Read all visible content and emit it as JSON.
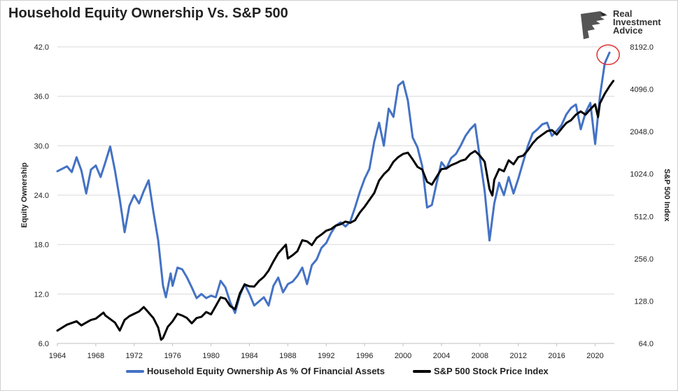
{
  "chart_data": {
    "type": "line",
    "title": "Household Equity Ownership Vs. S&P 500",
    "xlabel": "",
    "ylabel": "Equity Ownership",
    "y2label": "S&P 500 Index",
    "x_ticks": [
      "1964",
      "1968",
      "1972",
      "1976",
      "1980",
      "1984",
      "1988",
      "1992",
      "1996",
      "2000",
      "2004",
      "2008",
      "2012",
      "2016",
      "2020"
    ],
    "x_range": [
      1964,
      2022
    ],
    "y_ticks": [
      "6.0",
      "12.0",
      "18.0",
      "24.0",
      "30.0",
      "36.0",
      "42.0"
    ],
    "ylim": [
      6,
      42
    ],
    "y2_ticks": [
      "64.0",
      "128.0",
      "256.0",
      "512.0",
      "1024.0",
      "2048.0",
      "4096.0",
      "8192.0"
    ],
    "y2lim_log2": [
      6,
      13
    ],
    "grid": true,
    "legend_position": "bottom",
    "annotation": "red circle around latest equity ownership high",
    "series": [
      {
        "name": "Household Equity Ownership As % Of Financial Assets",
        "color": "#4472C4",
        "axis": "left",
        "points": [
          [
            1964,
            26.9
          ],
          [
            1965,
            27.5
          ],
          [
            1965.5,
            26.8
          ],
          [
            1966,
            28.6
          ],
          [
            1966.5,
            27.0
          ],
          [
            1967,
            24.2
          ],
          [
            1967.5,
            27.1
          ],
          [
            1968,
            27.6
          ],
          [
            1968.5,
            26.2
          ],
          [
            1969,
            28.0
          ],
          [
            1969.5,
            29.9
          ],
          [
            1970,
            27.0
          ],
          [
            1970.5,
            23.5
          ],
          [
            1971,
            19.5
          ],
          [
            1971.5,
            22.7
          ],
          [
            1972,
            24.0
          ],
          [
            1972.5,
            23.0
          ],
          [
            1973,
            24.5
          ],
          [
            1973.5,
            25.8
          ],
          [
            1974,
            22.0
          ],
          [
            1974.5,
            18.5
          ],
          [
            1975,
            13.0
          ],
          [
            1975.3,
            11.6
          ],
          [
            1975.8,
            14.5
          ],
          [
            1976,
            13.0
          ],
          [
            1976.5,
            15.2
          ],
          [
            1977,
            15.0
          ],
          [
            1977.5,
            14.0
          ],
          [
            1978,
            12.8
          ],
          [
            1978.5,
            11.5
          ],
          [
            1979,
            12.0
          ],
          [
            1979.5,
            11.5
          ],
          [
            1980,
            11.8
          ],
          [
            1980.5,
            11.6
          ],
          [
            1981,
            13.6
          ],
          [
            1981.5,
            12.8
          ],
          [
            1982,
            11.0
          ],
          [
            1982.5,
            9.7
          ],
          [
            1983,
            11.8
          ],
          [
            1983.5,
            13.2
          ],
          [
            1984,
            12.0
          ],
          [
            1984.5,
            10.6
          ],
          [
            1985,
            11.1
          ],
          [
            1985.5,
            11.6
          ],
          [
            1986,
            10.6
          ],
          [
            1986.5,
            13.0
          ],
          [
            1987,
            14.0
          ],
          [
            1987.5,
            12.2
          ],
          [
            1988,
            13.2
          ],
          [
            1988.5,
            13.5
          ],
          [
            1989,
            14.2
          ],
          [
            1989.5,
            15.2
          ],
          [
            1990,
            13.2
          ],
          [
            1990.5,
            15.5
          ],
          [
            1991,
            16.2
          ],
          [
            1991.5,
            17.6
          ],
          [
            1992,
            18.2
          ],
          [
            1992.5,
            19.4
          ],
          [
            1993,
            20.3
          ],
          [
            1993.5,
            20.7
          ],
          [
            1994,
            20.2
          ],
          [
            1994.5,
            20.8
          ],
          [
            1995,
            22.5
          ],
          [
            1995.5,
            24.4
          ],
          [
            1996,
            26.0
          ],
          [
            1996.5,
            27.2
          ],
          [
            1997,
            30.5
          ],
          [
            1997.5,
            32.8
          ],
          [
            1998,
            30.0
          ],
          [
            1998.5,
            34.5
          ],
          [
            1999,
            33.5
          ],
          [
            1999.5,
            37.3
          ],
          [
            2000,
            37.8
          ],
          [
            2000.5,
            35.5
          ],
          [
            2001,
            31.0
          ],
          [
            2001.5,
            29.8
          ],
          [
            2002,
            27.5
          ],
          [
            2002.5,
            22.5
          ],
          [
            2003,
            22.8
          ],
          [
            2003.5,
            25.5
          ],
          [
            2004,
            28.0
          ],
          [
            2004.5,
            27.2
          ],
          [
            2005,
            28.5
          ],
          [
            2005.5,
            29.0
          ],
          [
            2006,
            30.0
          ],
          [
            2006.5,
            31.2
          ],
          [
            2007,
            32.0
          ],
          [
            2007.5,
            32.6
          ],
          [
            2008,
            28.5
          ],
          [
            2008.5,
            24.5
          ],
          [
            2009,
            18.5
          ],
          [
            2009.5,
            23.0
          ],
          [
            2010,
            25.5
          ],
          [
            2010.5,
            24.0
          ],
          [
            2011,
            26.2
          ],
          [
            2011.5,
            24.2
          ],
          [
            2012,
            26.0
          ],
          [
            2012.5,
            28.0
          ],
          [
            2013,
            30.0
          ],
          [
            2013.5,
            31.5
          ],
          [
            2014,
            32.0
          ],
          [
            2014.5,
            32.6
          ],
          [
            2015,
            32.8
          ],
          [
            2015.5,
            31.2
          ],
          [
            2016,
            31.8
          ],
          [
            2016.5,
            32.5
          ],
          [
            2017,
            33.8
          ],
          [
            2017.5,
            34.6
          ],
          [
            2018,
            35.0
          ],
          [
            2018.5,
            32.0
          ],
          [
            2019,
            34.0
          ],
          [
            2019.5,
            35.2
          ],
          [
            2020,
            30.2
          ],
          [
            2020.5,
            36.0
          ],
          [
            2021,
            40.0
          ],
          [
            2021.5,
            41.3
          ]
        ]
      },
      {
        "name": "S&P 500 Stock Price Index",
        "color": "#000000",
        "axis": "right",
        "points": [
          [
            1964,
            79
          ],
          [
            1965,
            87
          ],
          [
            1966,
            92
          ],
          [
            1966.5,
            86
          ],
          [
            1967,
            90
          ],
          [
            1967.5,
            94
          ],
          [
            1968,
            96
          ],
          [
            1968.8,
            106
          ],
          [
            1969,
            101
          ],
          [
            1970,
            90
          ],
          [
            1970.5,
            79
          ],
          [
            1971,
            94
          ],
          [
            1971.5,
            100
          ],
          [
            1972,
            104
          ],
          [
            1972.5,
            108
          ],
          [
            1973,
            116
          ],
          [
            1973.5,
            106
          ],
          [
            1974,
            97
          ],
          [
            1974.5,
            83
          ],
          [
            1974.8,
            68
          ],
          [
            1975,
            70
          ],
          [
            1975.5,
            84
          ],
          [
            1976,
            92
          ],
          [
            1976.5,
            104
          ],
          [
            1977,
            101
          ],
          [
            1977.5,
            97
          ],
          [
            1978,
            89
          ],
          [
            1978.5,
            97
          ],
          [
            1979,
            99
          ],
          [
            1979.5,
            107
          ],
          [
            1980,
            103
          ],
          [
            1980.5,
            118
          ],
          [
            1981,
            136
          ],
          [
            1981.5,
            133
          ],
          [
            1982,
            118
          ],
          [
            1982.5,
            112
          ],
          [
            1983,
            145
          ],
          [
            1983.5,
            168
          ],
          [
            1984,
            163
          ],
          [
            1984.5,
            162
          ],
          [
            1985,
            178
          ],
          [
            1985.5,
            190
          ],
          [
            1986,
            211
          ],
          [
            1986.5,
            245
          ],
          [
            1987,
            280
          ],
          [
            1987.8,
            322
          ],
          [
            1988,
            257
          ],
          [
            1988.5,
            271
          ],
          [
            1989,
            290
          ],
          [
            1989.5,
            346
          ],
          [
            1990,
            340
          ],
          [
            1990.5,
            320
          ],
          [
            1991,
            360
          ],
          [
            1991.5,
            380
          ],
          [
            1992,
            405
          ],
          [
            1992.5,
            415
          ],
          [
            1993,
            440
          ],
          [
            1993.5,
            450
          ],
          [
            1994,
            470
          ],
          [
            1994.5,
            460
          ],
          [
            1995,
            480
          ],
          [
            1995.5,
            545
          ],
          [
            1996,
            600
          ],
          [
            1996.5,
            670
          ],
          [
            1997,
            750
          ],
          [
            1997.5,
            920
          ],
          [
            1998,
            1020
          ],
          [
            1998.5,
            1100
          ],
          [
            1999,
            1250
          ],
          [
            1999.5,
            1350
          ],
          [
            2000,
            1420
          ],
          [
            2000.5,
            1450
          ],
          [
            2001,
            1300
          ],
          [
            2001.5,
            1150
          ],
          [
            2002,
            1100
          ],
          [
            2002.5,
            900
          ],
          [
            2003,
            860
          ],
          [
            2003.5,
            980
          ],
          [
            2004,
            1110
          ],
          [
            2004.5,
            1120
          ],
          [
            2005,
            1180
          ],
          [
            2005.5,
            1220
          ],
          [
            2006,
            1270
          ],
          [
            2006.5,
            1300
          ],
          [
            2007,
            1420
          ],
          [
            2007.5,
            1490
          ],
          [
            2008,
            1380
          ],
          [
            2008.5,
            1250
          ],
          [
            2009,
            800
          ],
          [
            2009.3,
            720
          ],
          [
            2009.5,
            930
          ],
          [
            2010,
            1110
          ],
          [
            2010.5,
            1070
          ],
          [
            2011,
            1280
          ],
          [
            2011.5,
            1200
          ],
          [
            2012,
            1350
          ],
          [
            2012.5,
            1380
          ],
          [
            2013,
            1510
          ],
          [
            2013.5,
            1690
          ],
          [
            2014,
            1840
          ],
          [
            2014.5,
            1950
          ],
          [
            2015,
            2060
          ],
          [
            2015.5,
            2100
          ],
          [
            2016,
            1950
          ],
          [
            2016.5,
            2150
          ],
          [
            2017,
            2360
          ],
          [
            2017.5,
            2470
          ],
          [
            2018,
            2700
          ],
          [
            2018.5,
            2850
          ],
          [
            2019,
            2700
          ],
          [
            2019.5,
            2950
          ],
          [
            2020,
            3200
          ],
          [
            2020.3,
            2600
          ],
          [
            2020.5,
            3250
          ],
          [
            2021,
            3800
          ],
          [
            2021.5,
            4300
          ],
          [
            2021.9,
            4700
          ]
        ]
      }
    ]
  },
  "logo": {
    "line1": "Real",
    "line2": "Investment",
    "line3": "Advice"
  }
}
